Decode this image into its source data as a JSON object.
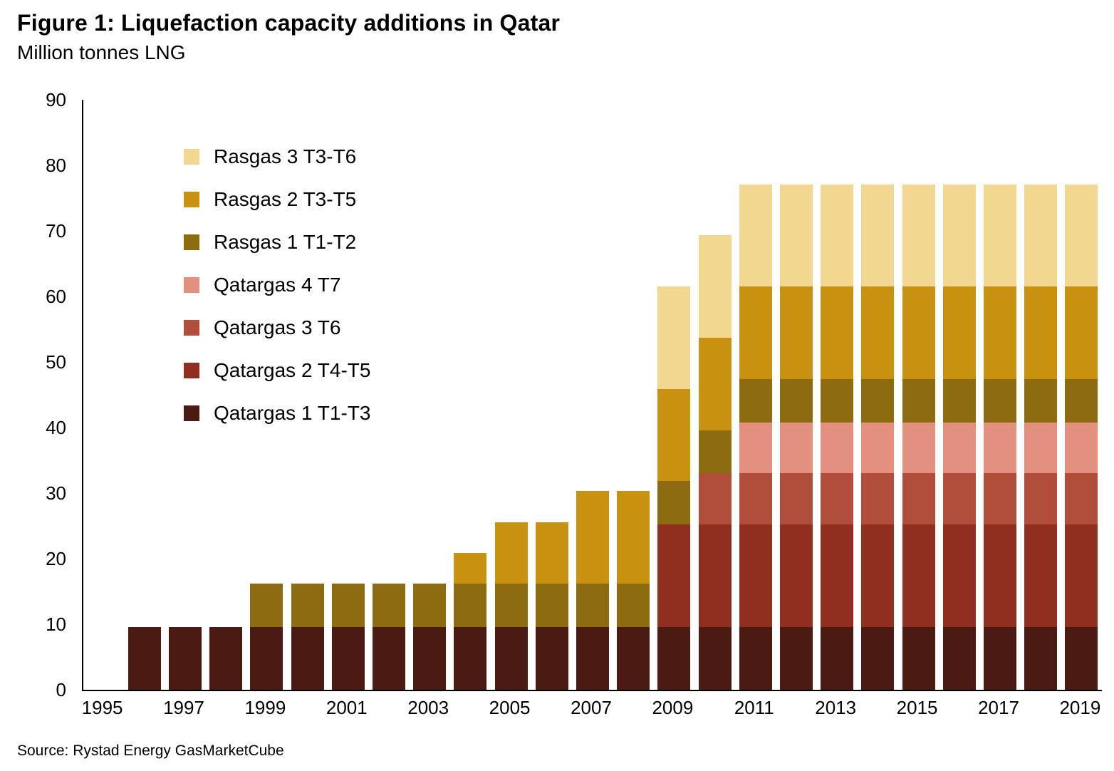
{
  "header": {
    "title": "Figure 1: Liquefaction capacity additions in Qatar",
    "subtitle": "Million tonnes LNG"
  },
  "footer": {
    "source": "Source: Rystad Energy GasMarketCube"
  },
  "chart_data": {
    "type": "bar",
    "stacked": true,
    "title": "Figure 1: Liquefaction capacity additions in Qatar",
    "subtitle": "Million tonnes LNG",
    "xlabel": "",
    "ylabel": "Million tonnes LNG",
    "ylim": [
      0,
      90
    ],
    "ytick_step": 10,
    "grid": false,
    "legend_position": "top-left-inside",
    "x": [
      1995,
      1996,
      1997,
      1998,
      1999,
      2000,
      2001,
      2002,
      2003,
      2004,
      2005,
      2006,
      2007,
      2008,
      2009,
      2010,
      2011,
      2012,
      2013,
      2014,
      2015,
      2016,
      2017,
      2018,
      2019
    ],
    "xtick_labels": [
      "1995",
      "1997",
      "1999",
      "2001",
      "2003",
      "2005",
      "2007",
      "2009",
      "2011",
      "2013",
      "2015",
      "2017",
      "2019"
    ],
    "series": [
      {
        "name": "Qatargas 1 T1-T3",
        "color": "#4a1a13",
        "values": [
          0,
          9.6,
          9.6,
          9.6,
          9.6,
          9.6,
          9.6,
          9.6,
          9.6,
          9.6,
          9.6,
          9.6,
          9.6,
          9.6,
          9.6,
          9.6,
          9.6,
          9.6,
          9.6,
          9.6,
          9.6,
          9.6,
          9.6,
          9.6,
          9.6
        ]
      },
      {
        "name": "Qatargas 2 T4-T5",
        "color": "#8e2f20",
        "values": [
          0,
          0,
          0,
          0,
          0,
          0,
          0,
          0,
          0,
          0,
          0,
          0,
          0,
          0,
          15.6,
          15.6,
          15.6,
          15.6,
          15.6,
          15.6,
          15.6,
          15.6,
          15.6,
          15.6,
          15.6
        ]
      },
      {
        "name": "Qatargas 3 T6",
        "color": "#b04d3b",
        "values": [
          0,
          0,
          0,
          0,
          0,
          0,
          0,
          0,
          0,
          0,
          0,
          0,
          0,
          0,
          0,
          7.8,
          7.8,
          7.8,
          7.8,
          7.8,
          7.8,
          7.8,
          7.8,
          7.8,
          7.8
        ]
      },
      {
        "name": "Qatargas 4 T7",
        "color": "#e4907f",
        "values": [
          0,
          0,
          0,
          0,
          0,
          0,
          0,
          0,
          0,
          0,
          0,
          0,
          0,
          0,
          0,
          0,
          7.8,
          7.8,
          7.8,
          7.8,
          7.8,
          7.8,
          7.8,
          7.8,
          7.8
        ]
      },
      {
        "name": "Rasgas 1 T1-T2",
        "color": "#8d6c11",
        "values": [
          0,
          0,
          0,
          0,
          6.6,
          6.6,
          6.6,
          6.6,
          6.6,
          6.6,
          6.6,
          6.6,
          6.6,
          6.6,
          6.6,
          6.6,
          6.6,
          6.6,
          6.6,
          6.6,
          6.6,
          6.6,
          6.6,
          6.6,
          6.6
        ]
      },
      {
        "name": "Rasgas 2 T3-T5",
        "color": "#c89210",
        "values": [
          0,
          0,
          0,
          0,
          0,
          0,
          0,
          0,
          0,
          4.7,
          9.4,
          9.4,
          14.1,
          14.1,
          14.1,
          14.1,
          14.1,
          14.1,
          14.1,
          14.1,
          14.1,
          14.1,
          14.1,
          14.1,
          14.1
        ]
      },
      {
        "name": "Rasgas 3 T3-T6",
        "color": "#f2d791",
        "values": [
          0,
          0,
          0,
          0,
          0,
          0,
          0,
          0,
          0,
          0,
          0,
          0,
          0,
          0,
          15.6,
          15.6,
          15.6,
          15.6,
          15.6,
          15.6,
          15.6,
          15.6,
          15.6,
          15.6,
          15.6
        ]
      }
    ],
    "legend_order": [
      "Rasgas 3 T3-T6",
      "Rasgas 2 T3-T5",
      "Rasgas 1 T1-T2",
      "Qatargas 4 T7",
      "Qatargas 3 T6",
      "Qatargas 2 T4-T5",
      "Qatargas 1 T1-T3"
    ]
  }
}
